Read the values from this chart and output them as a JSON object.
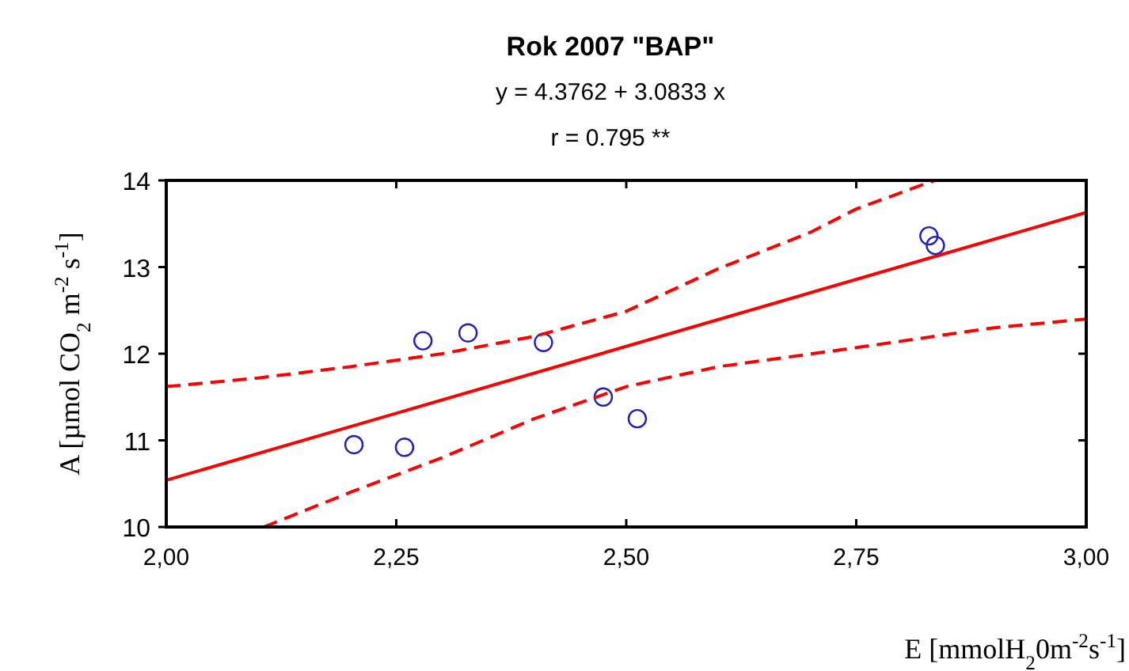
{
  "chart_data": {
    "type": "scatter",
    "title": "Rok 2007 \"BAP\"",
    "subtitle": "y = 4.3762 + 3.0833 x",
    "annotations": [
      "r =  0.795 **"
    ],
    "xlabel": "E [mmolH$_{2}$0m$^{-2}$s$^{-1}$]",
    "ylabel": "A [µmol CO$_{2}$ m$^{-2}$ s$^{-1}$]",
    "xlim": [
      2,
      3
    ],
    "xticks": [
      {
        "value": 2,
        "label": "2,00"
      },
      {
        "value": 2.25,
        "label": "2,25"
      },
      {
        "value": 2.5,
        "label": "2,50"
      },
      {
        "value": 2.75,
        "label": "2,75"
      },
      {
        "value": 3,
        "label": "3,00"
      }
    ],
    "ylim": [
      10,
      14
    ],
    "yticks": [
      10,
      11,
      12,
      13,
      14
    ],
    "grid": false,
    "series": [
      {
        "color": "#1f1fbf",
        "marker": "circle",
        "x": [
          2.204,
          2.259,
          2.279,
          2.328,
          2.41,
          2.475,
          2.512,
          2.829,
          2.836
        ],
        "values": [
          10.95,
          10.92,
          12.15,
          12.24,
          12.13,
          11.5,
          11.25,
          13.36,
          13.25
        ]
      },
      {
        "type": "line",
        "color": "#ff0000",
        "line_style": "solid",
        "x": [
          2,
          3
        ],
        "values": [
          10.54,
          13.63
        ]
      },
      {
        "type": "line",
        "color": "#ff0000",
        "line_style": "dashed",
        "x": [
          2,
          2.1,
          2.2,
          2.3,
          2.4,
          2.5,
          2.6,
          2.7,
          2.75,
          2.835
        ],
        "values": [
          11.62,
          11.72,
          11.85,
          12.0,
          12.2,
          12.49,
          12.98,
          13.4,
          13.67,
          14
        ]
      },
      {
        "type": "line",
        "color": "#ff0000",
        "line_style": "dashed",
        "x": [
          2.106,
          2.2,
          2.3,
          2.4,
          2.5,
          2.6,
          2.75,
          2.9,
          3
        ],
        "values": [
          10,
          10.4,
          10.8,
          11.25,
          11.62,
          11.85,
          12.07,
          12.3,
          12.4
        ]
      }
    ]
  }
}
